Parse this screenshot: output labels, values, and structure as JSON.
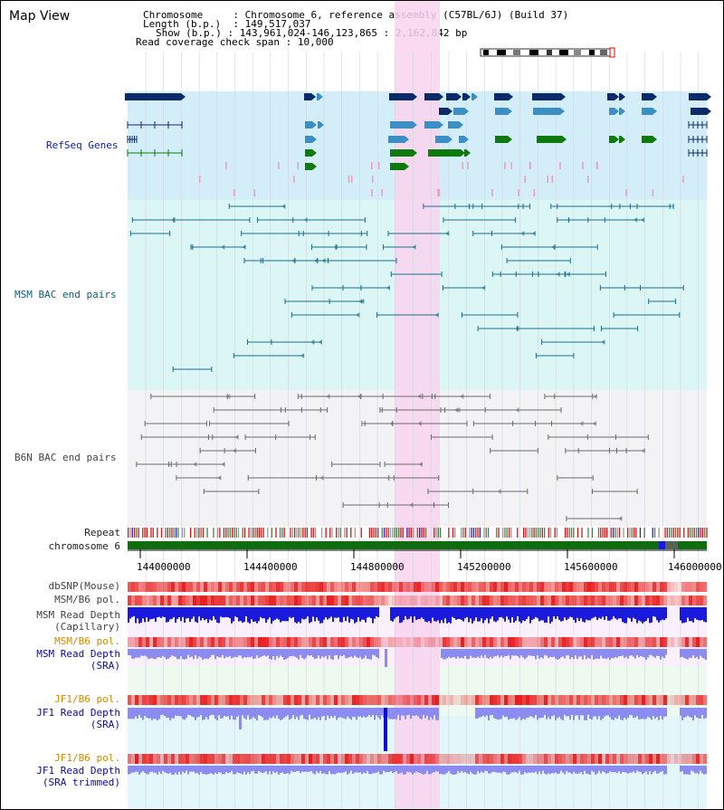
{
  "view": {
    "title": "Map View",
    "info": {
      "chromosome_label": "Chromosome",
      "chromosome_value": "Chromosome 6, reference assembly (C57BL/6J) (Build 37)",
      "length_label": "Length (b.p.)",
      "length_value": "149,517,037",
      "show_label": "Show (b.p.)",
      "show_value": "143,961,024-146,123,865 : 2,162,842 bp",
      "coverage_label": "Read coverage check span",
      "coverage_value": "10,000"
    },
    "colors": {
      "gene_band": "#d4eef9",
      "msm_band": "#dcf6f6",
      "b6n_band": "#f3f3f5",
      "highlight": "#f9d3ee",
      "gene_dark": "#0a2a6a",
      "gene_mid": "#3b8fc4",
      "gene_green": "#0e7a0e",
      "msm_pair": "#1a6e8c",
      "b6n_pair": "#6b6b6b",
      "chromosome_bar": "#0f6d0f",
      "snp": "#f05050",
      "depth_dark": "#1a1adc",
      "depth_light": "#8b8bf2"
    }
  },
  "tracks": {
    "refseq": "RefSeq Genes",
    "msm_bac": "MSM BAC end pairs",
    "b6n_bac": "B6N BAC end pairs",
    "repeat": "Repeat",
    "chromosome": "chromosome 6",
    "dbsnp": "dbSNP(Mouse)",
    "msm_b6_pol": "MSM/B6 pol.",
    "msm_depth_cap_1": "MSM Read Depth",
    "msm_depth_cap_2": "(Capillary)",
    "msm_b6_pol_2": "MSM/B6 pol.",
    "msm_depth_sra_1": "MSM Read Depth",
    "msm_depth_sra_2": "(SRA)",
    "jf1_b6_pol": "JF1/B6 pol.",
    "jf1_depth_sra_1": "JF1 Read Depth",
    "jf1_depth_sra_2": "(SRA)",
    "jf1_b6_pol_2": "JF1/B6 pol.",
    "jf1_depth_trim_1": "JF1 Read Depth",
    "jf1_depth_trim_2": "(SRA trimmed)"
  },
  "axis": {
    "ticks": [
      "144000000",
      "144400000",
      "144800000",
      "145200000",
      "145600000",
      "146000000"
    ]
  }
}
